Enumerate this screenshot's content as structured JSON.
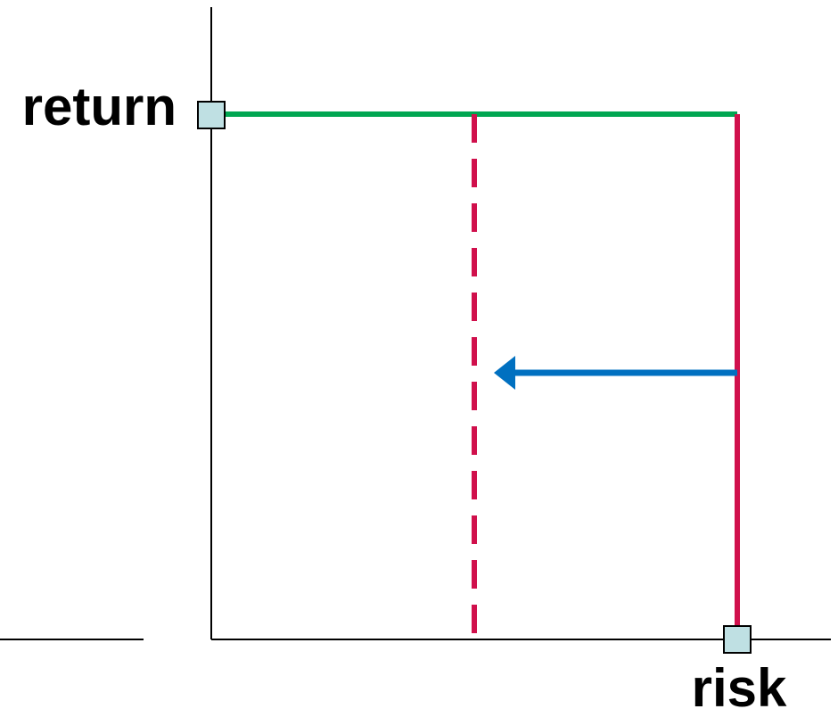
{
  "labels": {
    "y_axis": "return",
    "x_axis": "risk"
  },
  "colors": {
    "return_line": "#00a651",
    "risk_line": "#d0104c",
    "shift_arrow": "#0070c0",
    "marker_fill": "#bfe0e3",
    "axis": "#000000"
  }
}
